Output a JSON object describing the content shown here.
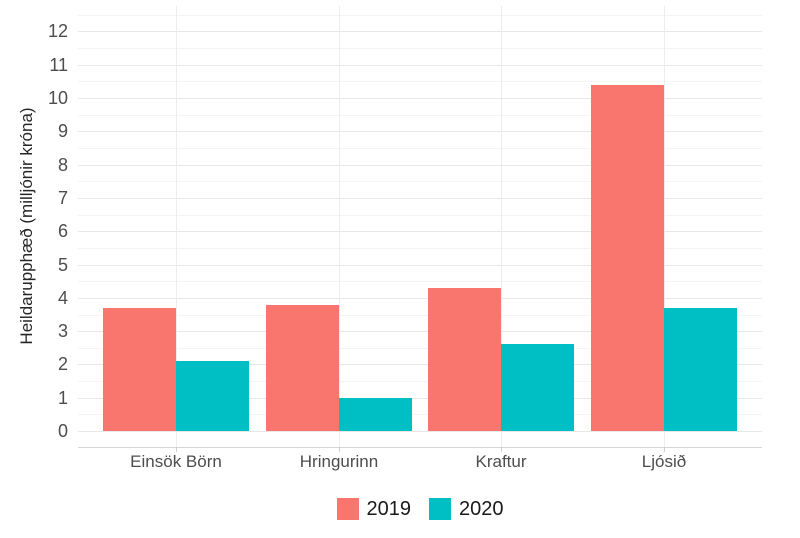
{
  "chart_data": {
    "type": "bar",
    "title": "",
    "xlabel": "",
    "ylabel": "Heildarupphæð (milljónir króna)",
    "categories": [
      "Einsök Börn",
      "Hringurinn",
      "Kraftur",
      "Ljósið"
    ],
    "series": [
      {
        "name": "2019",
        "color": "#F8766D",
        "values": [
          3.7,
          3.8,
          4.3,
          10.4
        ]
      },
      {
        "name": "2020",
        "color": "#00BFC4",
        "values": [
          2.1,
          1.0,
          2.6,
          3.7
        ]
      }
    ],
    "ylim": [
      0,
      12
    ],
    "yticks": [
      0,
      1,
      2,
      3,
      4,
      5,
      6,
      7,
      8,
      9,
      10,
      11,
      12
    ],
    "minor_gridlines": true,
    "grid": true,
    "legend_position": "bottom",
    "axis_text_color": "#4d4d4d",
    "axis_title_color": "#262626",
    "legend_text_color": "#1a1a1a"
  }
}
